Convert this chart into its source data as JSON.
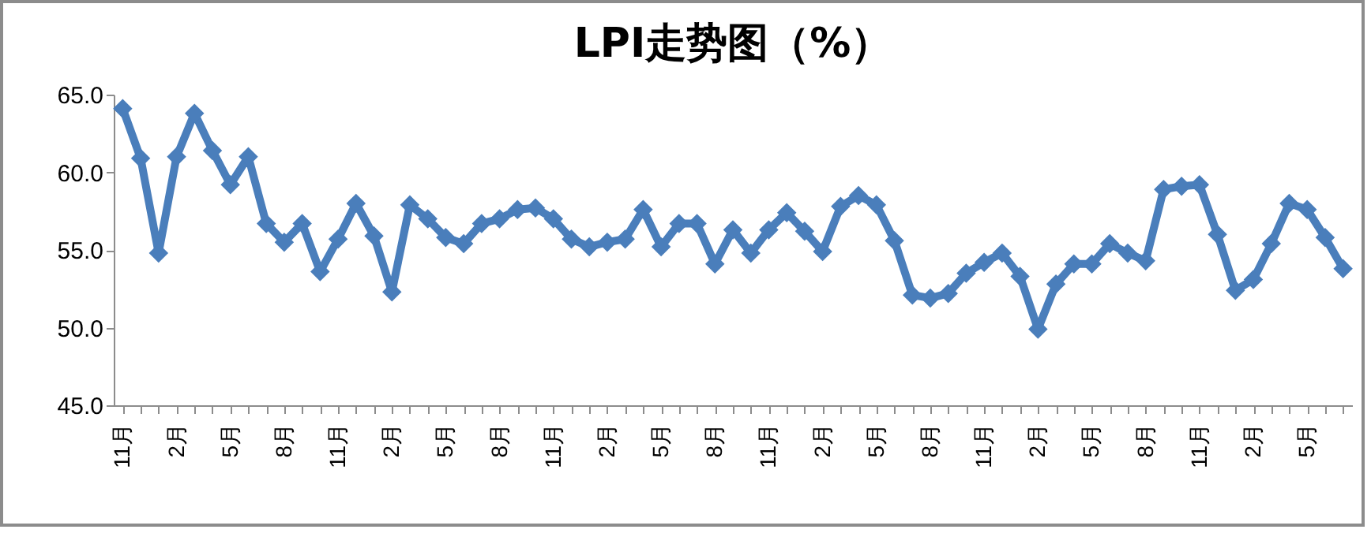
{
  "chart_data": {
    "type": "line",
    "title": "LPI走势图（%）",
    "color": "#4a7ebb",
    "marker": "diamond",
    "line_style": "solid",
    "categories": [
      "11月",
      null,
      null,
      "2月",
      null,
      null,
      "5月",
      null,
      null,
      "8月",
      null,
      null,
      "11月",
      null,
      null,
      "2月",
      null,
      null,
      "5月",
      null,
      null,
      "8月",
      null,
      null,
      "11月",
      null,
      null,
      "2月",
      null,
      null,
      "5月",
      null,
      null,
      "8月",
      null,
      null,
      "11月",
      null,
      null,
      "2月",
      null,
      null,
      "5月",
      null,
      null,
      "8月",
      null,
      null,
      "11月",
      null,
      null,
      "2月",
      null,
      null,
      "5月",
      null,
      null,
      "8月",
      null,
      null,
      "11月",
      null,
      null,
      "2月",
      null,
      null,
      "5月",
      null,
      null
    ],
    "values": [
      64.1,
      60.9,
      54.8,
      61.0,
      63.8,
      61.4,
      59.2,
      61.0,
      56.7,
      55.5,
      56.7,
      53.6,
      55.7,
      58.0,
      55.9,
      52.3,
      57.9,
      57.0,
      55.8,
      55.4,
      56.7,
      57.0,
      57.6,
      57.7,
      57.0,
      55.7,
      55.2,
      55.5,
      55.7,
      57.6,
      55.2,
      56.7,
      56.7,
      54.1,
      56.3,
      54.8,
      56.3,
      57.4,
      56.2,
      54.9,
      57.8,
      58.5,
      57.9,
      55.6,
      52.1,
      51.9,
      52.2,
      53.5,
      54.2,
      54.8,
      53.3,
      49.9,
      52.8,
      54.1,
      54.1,
      55.4,
      54.8,
      54.3,
      58.9,
      59.1,
      59.2,
      56.0,
      52.4,
      53.1,
      55.4,
      58.0,
      57.6,
      55.8,
      53.8
    ],
    "ylim": [
      45,
      65
    ],
    "yticks": [
      {
        "value": 45,
        "label": "45.0"
      },
      {
        "value": 50,
        "label": "50.0"
      },
      {
        "value": 55,
        "label": "55.0"
      },
      {
        "value": 60,
        "label": "60.0"
      },
      {
        "value": 65,
        "label": "65.0"
      }
    ]
  }
}
